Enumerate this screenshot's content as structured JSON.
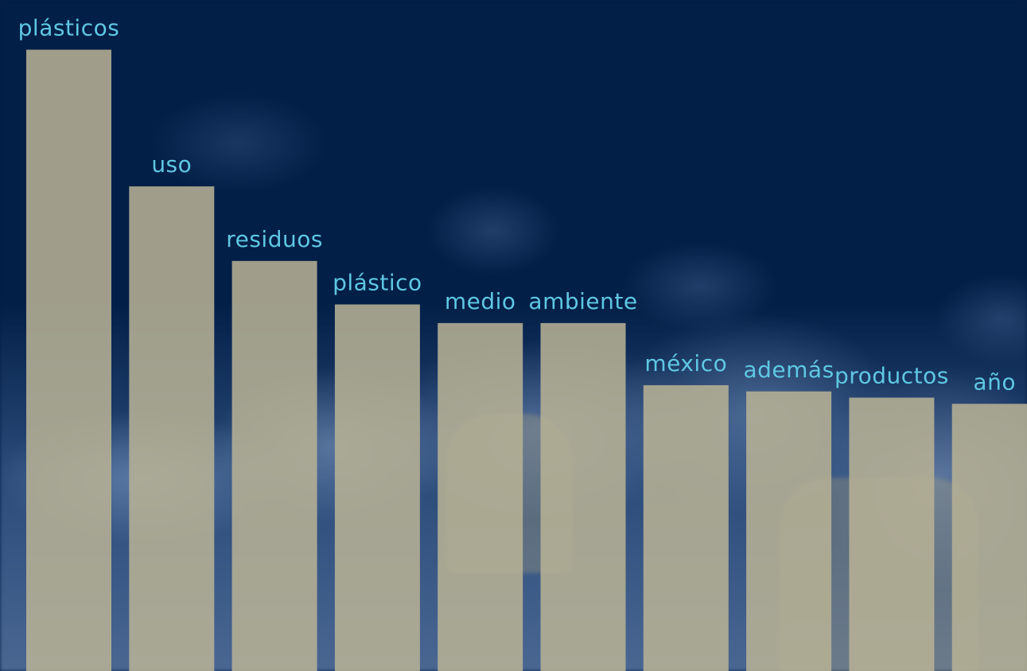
{
  "chart_data": {
    "type": "bar",
    "categories": [
      "plásticos",
      "uso",
      "residuos",
      "plástico",
      "medio",
      "ambiente",
      "méxico",
      "además",
      "productos",
      "año"
    ],
    "values": [
      100,
      78,
      66,
      59,
      56,
      56,
      46,
      45,
      44,
      43
    ],
    "ylim": [
      0,
      108
    ],
    "grid": false,
    "legend": "none",
    "bar_color": "#b6b095",
    "label_color": "#5fc8e3",
    "background_color": "#021f47"
  }
}
